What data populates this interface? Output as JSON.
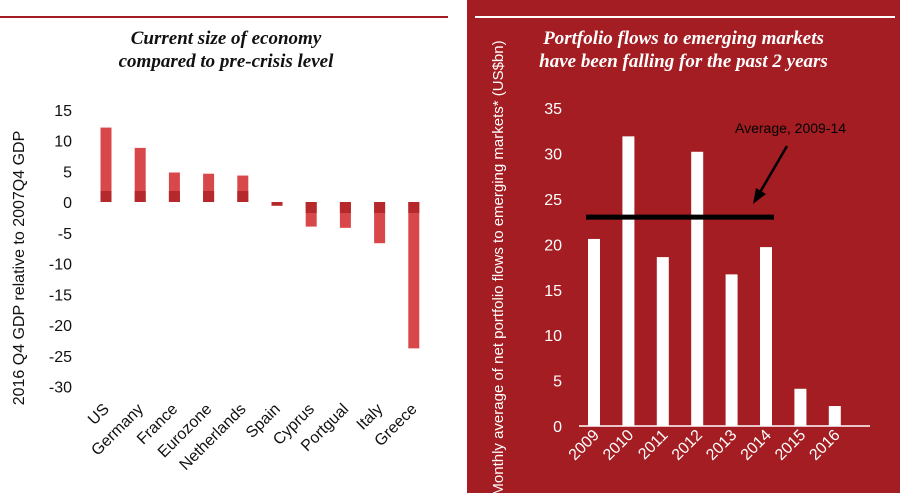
{
  "colors": {
    "accent_red": "#a31d22",
    "bar_dark": "#b5282b",
    "bar_light": "#d8484a",
    "white": "#ffffff",
    "text_dark": "#111111"
  },
  "left": {
    "title_line1": "Current size of economy",
    "title_line2": "compared to pre-crisis level"
  },
  "right": {
    "title_line1": "Portfolio flows to emerging markets",
    "title_line2": "have been falling for the past 2 years"
  },
  "chart_data": [
    {
      "type": "bar",
      "title": "Current size of economy compared to pre-crisis level",
      "ylabel": "2016 Q4 GDP relative to 2007Q4 GDP",
      "xlabel": "",
      "categories": [
        "US",
        "Germany",
        "France",
        "Eurozone",
        "Netherlands",
        "Spain",
        "Cyprus",
        "Portgual",
        "Italy",
        "Greece"
      ],
      "values": [
        12.1,
        8.8,
        4.8,
        4.6,
        4.3,
        -0.6,
        -4.0,
        -4.2,
        -6.7,
        -23.8
      ],
      "ylim": [
        -30,
        15
      ],
      "yticks": [
        "15",
        "10",
        "5",
        "0",
        "-5",
        "-10",
        "-15",
        "-20",
        "-25",
        "-30"
      ],
      "grid": false,
      "legend": "none"
    },
    {
      "type": "bar",
      "title": "Portfolio flows to emerging markets have been falling for the past 2 years",
      "ylabel": "Monthly average of net portfolio flows to emerging markets* (US$bn)",
      "xlabel": "",
      "categories": [
        "2009",
        "2010",
        "2011",
        "2012",
        "2013",
        "2014",
        "2015",
        "2016"
      ],
      "values": [
        20.6,
        31.9,
        18.6,
        30.2,
        16.7,
        19.7,
        4.1,
        2.2
      ],
      "ylim": [
        0,
        35
      ],
      "yticks": [
        "0",
        "5",
        "10",
        "15",
        "20",
        "25",
        "30",
        "35"
      ],
      "average": {
        "label": "Average, 2009-14",
        "value": 23,
        "from": "2009",
        "to": "2014"
      },
      "grid": false,
      "legend": "none"
    }
  ]
}
